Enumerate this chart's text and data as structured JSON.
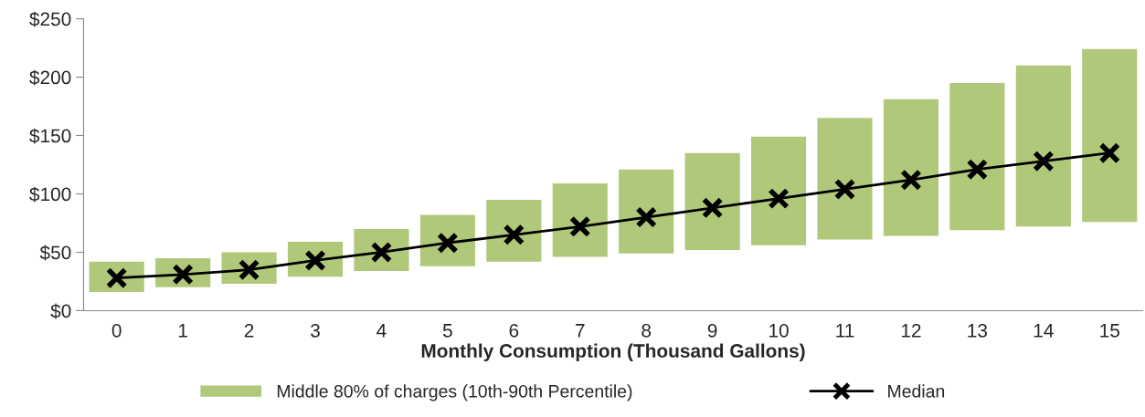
{
  "chart_data": {
    "type": "bar",
    "xlabel": "Monthly Consumption (Thousand Gallons)",
    "categories": [
      "0",
      "1",
      "2",
      "3",
      "4",
      "5",
      "6",
      "7",
      "8",
      "9",
      "10",
      "11",
      "12",
      "13",
      "14",
      "15"
    ],
    "series": [
      {
        "name": "Middle 80% of charges (10th-90th Percentile)",
        "color": "#b0c87a",
        "base": [
          16,
          20,
          23,
          29,
          34,
          38,
          42,
          46,
          49,
          52,
          56,
          61,
          64,
          69,
          72,
          76
        ],
        "values": [
          26,
          25,
          27,
          30,
          36,
          44,
          53,
          63,
          72,
          83,
          93,
          104,
          117,
          126,
          138,
          148
        ]
      },
      {
        "name": "Median",
        "type": "line",
        "color": "#000000",
        "marker": "cross",
        "values": [
          28,
          31,
          35,
          43,
          50,
          58,
          65,
          72,
          80,
          88,
          96,
          104,
          112,
          121,
          128,
          135
        ]
      }
    ],
    "ylim": [
      0,
      250
    ],
    "yticks": [
      {
        "value": 0,
        "label": "$0"
      },
      {
        "value": 50,
        "label": "$50"
      },
      {
        "value": 100,
        "label": "$100"
      },
      {
        "value": 150,
        "label": "$150"
      },
      {
        "value": 200,
        "label": "$200"
      },
      {
        "value": 250,
        "label": "$250"
      }
    ],
    "grid": false,
    "legend": "bottom"
  }
}
